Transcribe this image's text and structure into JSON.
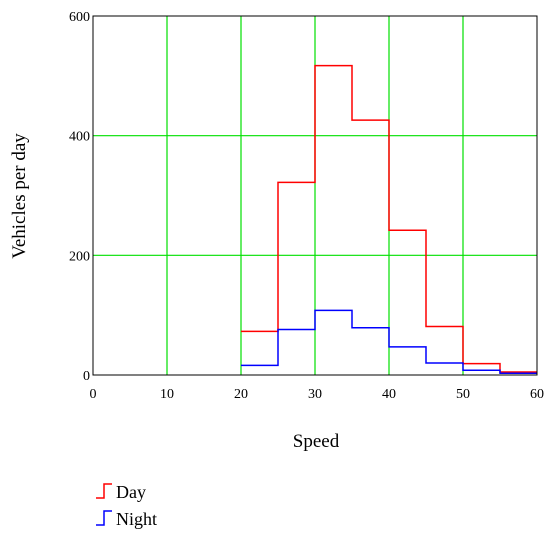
{
  "chart_data": {
    "type": "line",
    "step": true,
    "xlabel": "Speed",
    "ylabel": "Vehicles per day",
    "xlim": [
      0,
      60
    ],
    "ylim": [
      0,
      600
    ],
    "xticks": [
      0,
      10,
      20,
      30,
      40,
      50,
      60
    ],
    "yticks": [
      0,
      200,
      400,
      600
    ],
    "grid": true,
    "grid_color": "#00e000",
    "legend_position": "bottom-left",
    "series": [
      {
        "name": "Day",
        "color": "#ff0000",
        "bins": [
          {
            "x0": 20,
            "x1": 25,
            "y": 73
          },
          {
            "x0": 25,
            "x1": 30,
            "y": 322
          },
          {
            "x0": 30,
            "x1": 35,
            "y": 517
          },
          {
            "x0": 35,
            "x1": 40,
            "y": 426
          },
          {
            "x0": 40,
            "x1": 45,
            "y": 242
          },
          {
            "x0": 45,
            "x1": 50,
            "y": 81
          },
          {
            "x0": 50,
            "x1": 55,
            "y": 19
          },
          {
            "x0": 55,
            "x1": 60,
            "y": 5
          }
        ]
      },
      {
        "name": "Night",
        "color": "#0000ff",
        "bins": [
          {
            "x0": 20,
            "x1": 25,
            "y": 16
          },
          {
            "x0": 25,
            "x1": 30,
            "y": 76
          },
          {
            "x0": 30,
            "x1": 35,
            "y": 108
          },
          {
            "x0": 35,
            "x1": 40,
            "y": 79
          },
          {
            "x0": 40,
            "x1": 45,
            "y": 47
          },
          {
            "x0": 45,
            "x1": 50,
            "y": 20
          },
          {
            "x0": 50,
            "x1": 55,
            "y": 8
          },
          {
            "x0": 55,
            "x1": 60,
            "y": 3
          }
        ]
      }
    ]
  }
}
